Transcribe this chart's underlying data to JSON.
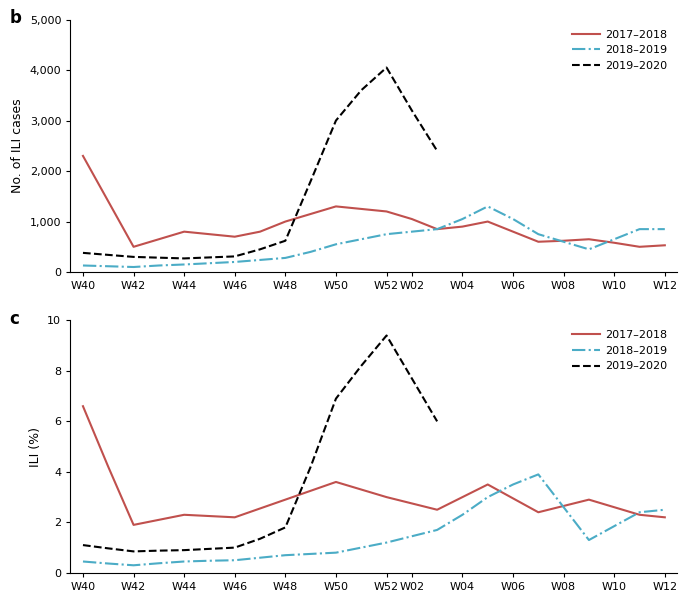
{
  "x_ticks_pos": [
    0,
    2,
    4,
    6,
    8,
    10,
    12,
    13,
    15,
    17,
    19,
    21,
    23
  ],
  "x_ticks_labels": [
    "W40",
    "W42",
    "W44",
    "W46",
    "W48",
    "W50",
    "W52",
    "W02",
    "W04",
    "W06",
    "W08",
    "W10",
    "W12"
  ],
  "b_2017_2018": [
    2300,
    1400,
    500,
    650,
    800,
    750,
    700,
    800,
    1000,
    1150,
    1300,
    1250,
    1200,
    1050,
    850,
    900,
    1000,
    800,
    600,
    620,
    650,
    580,
    500,
    530
  ],
  "b_2018_2019": [
    130,
    115,
    100,
    130,
    150,
    175,
    200,
    240,
    280,
    400,
    550,
    650,
    750,
    800,
    850,
    1050,
    1300,
    1050,
    750,
    600,
    450,
    650,
    850,
    850
  ],
  "b_2019_2020": [
    380,
    340,
    300,
    285,
    270,
    290,
    310,
    450,
    620,
    1800,
    3000,
    3600,
    4050,
    3200,
    2400,
    null,
    null,
    null,
    null,
    null,
    null,
    null,
    null,
    null
  ],
  "c_2017_2018": [
    6.6,
    4.2,
    1.9,
    2.1,
    2.3,
    2.25,
    2.2,
    2.55,
    2.9,
    3.25,
    3.6,
    3.3,
    3.0,
    2.75,
    2.5,
    3.0,
    3.5,
    2.95,
    2.4,
    2.65,
    2.9,
    2.6,
    2.3,
    2.2
  ],
  "c_2018_2019": [
    0.45,
    0.37,
    0.3,
    0.38,
    0.45,
    0.48,
    0.5,
    0.6,
    0.7,
    0.75,
    0.8,
    1.0,
    1.2,
    1.45,
    1.7,
    2.3,
    3.0,
    3.5,
    3.9,
    2.6,
    1.3,
    1.85,
    2.4,
    2.5
  ],
  "c_2019_2020": [
    1.1,
    0.97,
    0.85,
    0.88,
    0.9,
    0.95,
    1.0,
    1.35,
    1.8,
    4.2,
    6.9,
    8.2,
    9.4,
    7.7,
    6.0,
    null,
    null,
    null,
    null,
    null,
    null,
    null,
    null,
    null
  ],
  "color_red": "#c0504d",
  "color_blue": "#4bacc6",
  "color_black": "#000000",
  "b_ylabel": "No. of ILI cases",
  "c_ylabel": "ILI (%)",
  "b_ylim": [
    0,
    5000
  ],
  "c_ylim": [
    0,
    10
  ],
  "b_yticks": [
    0,
    1000,
    2000,
    3000,
    4000,
    5000
  ],
  "c_yticks": [
    0,
    2,
    4,
    6,
    8,
    10
  ],
  "legend_labels": [
    "2017–2018",
    "2018–2019",
    "2019–2020"
  ],
  "panel_b_label": "b",
  "panel_c_label": "c"
}
